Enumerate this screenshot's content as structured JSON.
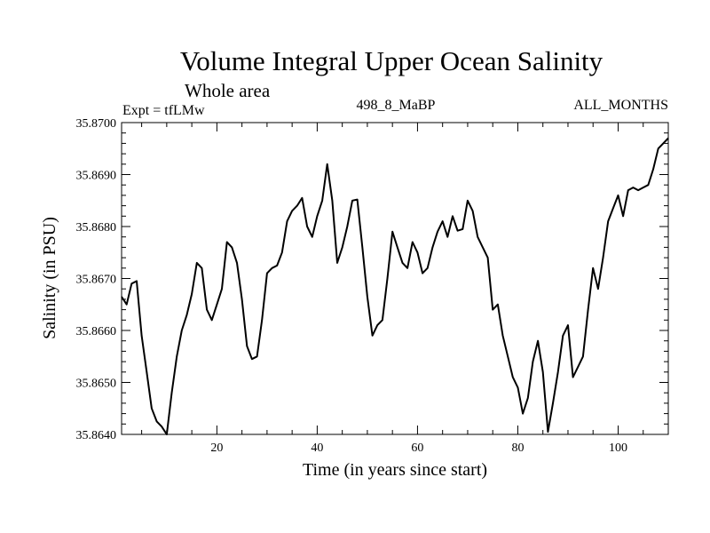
{
  "chart_data": {
    "type": "line",
    "title": "Volume Integral Upper Ocean Salinity",
    "subtitle": "Whole area",
    "left_note": "Expt = tfLMw",
    "center_note": "498_8_MaBP",
    "right_note": "ALL_MONTHS",
    "xlabel": "Time (in years since start)",
    "ylabel": "Salinity (in PSU)",
    "xlim": [
      1,
      110
    ],
    "ylim": [
      35.864,
      35.87
    ],
    "x_major_ticks": [
      20,
      40,
      60,
      80,
      100
    ],
    "x_tick_labels": [
      "20",
      "40",
      "60",
      "80",
      "100"
    ],
    "y_major_ticks": [
      35.864,
      35.865,
      35.866,
      35.867,
      35.868,
      35.869,
      35.87
    ],
    "y_tick_labels": [
      "35.8640",
      "35.8650",
      "35.8660",
      "35.8670",
      "35.8680",
      "35.8690",
      "35.8700"
    ],
    "line_color": "#000000",
    "series": [
      {
        "name": "Salinity",
        "x": [
          1,
          2,
          3,
          4,
          5,
          6,
          7,
          8,
          9,
          10,
          11,
          12,
          13,
          14,
          15,
          16,
          17,
          18,
          19,
          20,
          21,
          22,
          23,
          24,
          25,
          26,
          27,
          28,
          29,
          30,
          31,
          32,
          33,
          34,
          35,
          36,
          37,
          38,
          39,
          40,
          41,
          42,
          43,
          44,
          45,
          46,
          47,
          48,
          49,
          50,
          51,
          52,
          53,
          54,
          55,
          56,
          57,
          58,
          59,
          60,
          61,
          62,
          63,
          64,
          65,
          66,
          67,
          68,
          69,
          70,
          71,
          72,
          73,
          74,
          75,
          76,
          77,
          78,
          79,
          80,
          81,
          82,
          83,
          84,
          85,
          86,
          87,
          88,
          89,
          90,
          91,
          92,
          93,
          94,
          95,
          96,
          97,
          98,
          99,
          100,
          101,
          102,
          103,
          104,
          105,
          106,
          107,
          108,
          109,
          110
        ],
        "y": [
          35.86665,
          35.8665,
          35.8669,
          35.86695,
          35.8659,
          35.8652,
          35.8645,
          35.86425,
          35.86415,
          35.864,
          35.8648,
          35.8655,
          35.866,
          35.8663,
          35.8667,
          35.8673,
          35.8672,
          35.8664,
          35.8662,
          35.8665,
          35.8668,
          35.8677,
          35.8676,
          35.8673,
          35.8666,
          35.8657,
          35.86545,
          35.8655,
          35.8662,
          35.8671,
          35.8672,
          35.86725,
          35.8675,
          35.8681,
          35.8683,
          35.8684,
          35.86855,
          35.868,
          35.8678,
          35.8682,
          35.8685,
          35.8692,
          35.8685,
          35.8673,
          35.8676,
          35.868,
          35.8685,
          35.86852,
          35.8676,
          35.86665,
          35.8659,
          35.8661,
          35.8662,
          35.867,
          35.8679,
          35.8676,
          35.8673,
          35.8672,
          35.8677,
          35.8675,
          35.8671,
          35.8672,
          35.8676,
          35.8679,
          35.8681,
          35.8678,
          35.8682,
          35.86792,
          35.86795,
          35.8685,
          35.8683,
          35.8678,
          35.8676,
          35.8674,
          35.8664,
          35.8665,
          35.8659,
          35.8655,
          35.8651,
          35.8649,
          35.8644,
          35.8647,
          35.8654,
          35.8658,
          35.8652,
          35.86405,
          35.8646,
          35.8652,
          35.8659,
          35.8661,
          35.8651,
          35.8653,
          35.8655,
          35.8664,
          35.8672,
          35.8668,
          35.8674,
          35.8681,
          35.86835,
          35.8686,
          35.8682,
          35.8687,
          35.86875,
          35.8687,
          35.86875,
          35.8688,
          35.8691,
          35.8695,
          35.8696,
          35.8697
        ]
      }
    ]
  }
}
